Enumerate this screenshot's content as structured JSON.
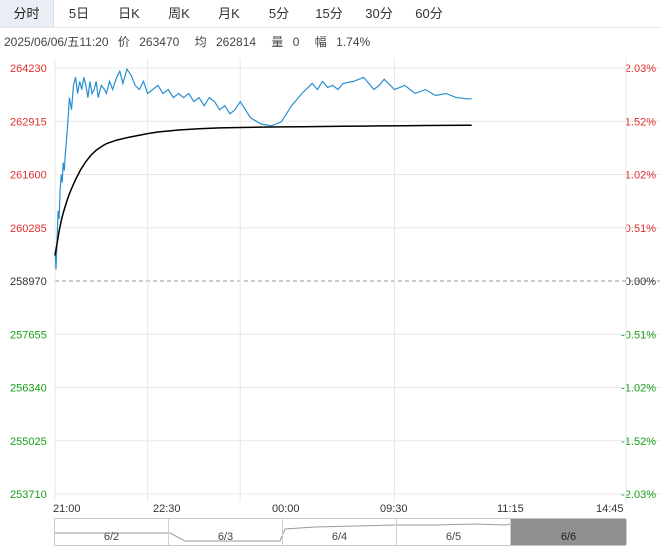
{
  "tabs": [
    {
      "label": "分时",
      "active": true
    },
    {
      "label": "5日",
      "active": false
    },
    {
      "label": "日K",
      "active": false
    },
    {
      "label": "周K",
      "active": false
    },
    {
      "label": "月K",
      "active": false
    },
    {
      "label": "5分",
      "active": false
    },
    {
      "label": "15分",
      "active": false
    },
    {
      "label": "30分",
      "active": false
    },
    {
      "label": "60分",
      "active": false
    }
  ],
  "info": {
    "datetime": "2025/06/06/五11:20",
    "price_label": "价",
    "price": "263470",
    "avg_label": "均",
    "avg": "262814",
    "vol_label": "量",
    "vol": "0",
    "change_label": "幅",
    "change": "1.74%"
  },
  "colors": {
    "up": "#e03030",
    "down": "#1aa01a",
    "neutral": "#333333",
    "price_line": "#2a8fd0",
    "avg_line": "#000000",
    "grid": "#e8e8e8",
    "baseline": "#999999"
  },
  "chart_data": {
    "type": "line",
    "base_price": 258970,
    "ylim": [
      253710,
      264230
    ],
    "y_ticks_left": [
      "264230",
      "262915",
      "261600",
      "260285",
      "258970",
      "257655",
      "256340",
      "255025",
      "253710"
    ],
    "y_ticks_right": [
      "2.03%",
      "1.52%",
      "1.02%",
      "0.51%",
      "0.00%",
      "-0.51%",
      "-1.02%",
      "-1.52%",
      "-2.03%"
    ],
    "x_ticks": [
      "21:00",
      "22:30",
      "00:00",
      "09:30",
      "11:15",
      "14:45"
    ],
    "sessions_total_minutes": 555,
    "series": [
      {
        "name": "价",
        "x": [
          0,
          1,
          2,
          3,
          4,
          5,
          6,
          7,
          8,
          9,
          10,
          11,
          12,
          13,
          14,
          16,
          18,
          20,
          22,
          24,
          26,
          28,
          30,
          32,
          34,
          36,
          38,
          40,
          42,
          45,
          48,
          50,
          53,
          56,
          60,
          63,
          66,
          70,
          74,
          78,
          82,
          86,
          90,
          95,
          100,
          105,
          110,
          115,
          120,
          125,
          130,
          135,
          140,
          145,
          150,
          155,
          160,
          165,
          170,
          175,
          180,
          190,
          200,
          210,
          220,
          230,
          240,
          250,
          255,
          260,
          265,
          270,
          275,
          280,
          290,
          300,
          310,
          315,
          320,
          330,
          340,
          350,
          360,
          370,
          380,
          390,
          400,
          405
        ],
        "y": [
          259700,
          259260,
          260000,
          260700,
          260500,
          261200,
          261600,
          261400,
          261900,
          261700,
          262100,
          262400,
          262700,
          263100,
          263500,
          263200,
          263800,
          264000,
          263600,
          263900,
          263700,
          264000,
          263800,
          263500,
          263900,
          263600,
          263700,
          263900,
          263500,
          263800,
          263700,
          263600,
          263900,
          263700,
          264000,
          264150,
          263850,
          264200,
          264050,
          263800,
          263700,
          263900,
          263600,
          263700,
          263800,
          263600,
          263700,
          263500,
          263600,
          263500,
          263600,
          263400,
          263500,
          263300,
          263500,
          263400,
          263200,
          263300,
          263100,
          263200,
          263400,
          263000,
          262850,
          262800,
          262900,
          263300,
          263600,
          263850,
          263700,
          263900,
          263750,
          263800,
          263700,
          263850,
          263900,
          264000,
          263700,
          263800,
          263950,
          263700,
          263800,
          263600,
          263700,
          263550,
          263600,
          263500,
          263470,
          263470
        ]
      },
      {
        "name": "均",
        "x": [
          0,
          2,
          4,
          6,
          8,
          10,
          12,
          14,
          16,
          20,
          25,
          30,
          35,
          40,
          45,
          50,
          60,
          70,
          80,
          90,
          100,
          120,
          140,
          160,
          180,
          200,
          220,
          240,
          260,
          280,
          300,
          320,
          340,
          360,
          380,
          400,
          405
        ],
        "y": [
          259600,
          259900,
          260200,
          260450,
          260650,
          260820,
          260980,
          261120,
          261250,
          261480,
          261720,
          261920,
          262080,
          262200,
          262290,
          262360,
          262450,
          262510,
          262560,
          262610,
          262650,
          262700,
          262730,
          262750,
          262760,
          262770,
          262775,
          262780,
          262785,
          262790,
          262795,
          262800,
          262805,
          262810,
          262812,
          262814,
          262814
        ]
      }
    ]
  },
  "navigator": {
    "segments": [
      "6/2",
      "6/3",
      "6/4",
      "6/5",
      "6/6"
    ],
    "selected": "6/6"
  }
}
